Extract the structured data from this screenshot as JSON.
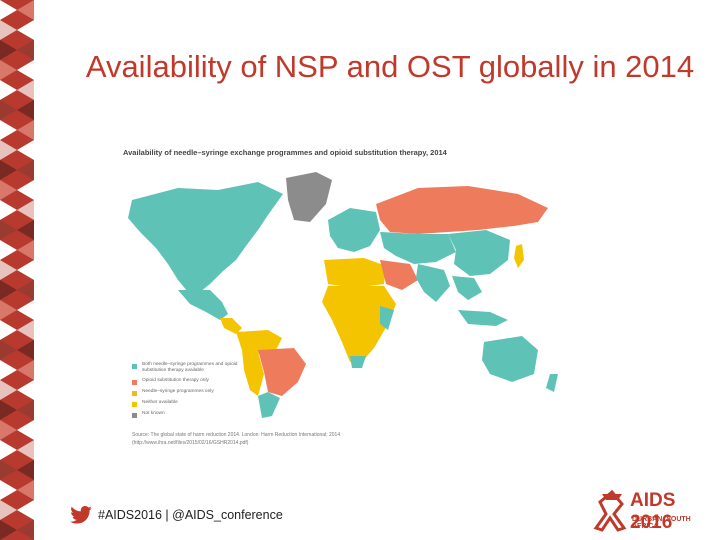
{
  "slide": {
    "title": "Availability of NSP and OST globally in 2014"
  },
  "figure": {
    "title": "Availability of needle–syringe exchange programmes and opioid substitution therapy, 2014",
    "legend": [
      {
        "label": "Both needle–syringe programmes and opioid substitution therapy available",
        "color": "#5ec2b6"
      },
      {
        "label": "Opioid substitution therapy only",
        "color": "#ee7c5c"
      },
      {
        "label": "Needle–syringe programmes only",
        "color": "#f0b823"
      },
      {
        "label": "Neither available",
        "color": "#f5c400"
      },
      {
        "label": "Not known",
        "color": "#8c8c8c"
      }
    ],
    "source_line1": "Source: The global state of harm reduction 2014. London: Harm Reduction International; 2014",
    "source_line2": "(http://www.ihra.net/files/2015/02/16/GSHR2014.pdf)"
  },
  "footer": {
    "hashtag_text": "#AIDS2016 | @AIDS_conference",
    "icon": "twitter-bird-icon"
  },
  "logo": {
    "main_text": "AIDS 2016",
    "sub_text": "DURBAN, SOUTH AFRICA"
  },
  "colors": {
    "title": "#c0392b",
    "both": "#5ec2b6",
    "ost_only": "#ee7c5c",
    "nsp_only": "#f0b823",
    "neither": "#f5c400",
    "not_known": "#8c8c8c"
  }
}
